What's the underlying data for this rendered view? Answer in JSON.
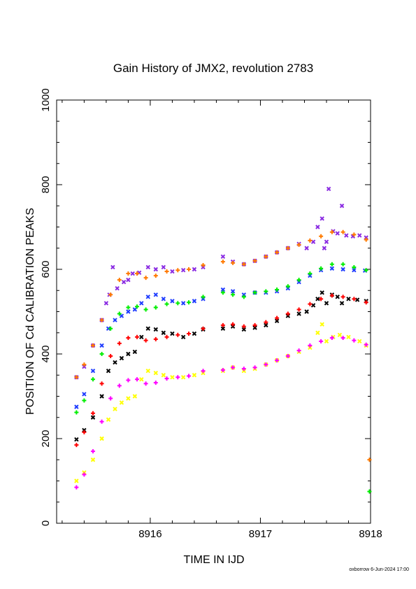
{
  "chart_data": {
    "type": "scatter",
    "title": "Gain History of JMX2, revolution 2783",
    "xlabel": "TIME IN IJD",
    "ylabel": "POSITION OF Cd CALIBRATION PEAKS",
    "xlim": [
      8915.15,
      8918.0
    ],
    "ylim": [
      0,
      1000
    ],
    "xticks": [
      8916,
      8917,
      8918
    ],
    "yticks": [
      0,
      200,
      400,
      600,
      800,
      1000
    ],
    "grid": false,
    "footer": "oxborrow  6-Jun-2024 17:00",
    "series": [
      {
        "color": "#8a2be2",
        "marker": "x",
        "points": [
          [
            8915.33,
            345
          ],
          [
            8915.4,
            370
          ],
          [
            8915.48,
            420
          ],
          [
            8915.56,
            480
          ],
          [
            8915.6,
            520
          ],
          [
            8915.63,
            540
          ],
          [
            8915.66,
            605
          ],
          [
            8915.7,
            555
          ],
          [
            8915.76,
            570
          ],
          [
            8915.8,
            575
          ],
          [
            8915.84,
            590
          ],
          [
            8915.9,
            592
          ],
          [
            8915.98,
            605
          ],
          [
            8916.05,
            600
          ],
          [
            8916.12,
            605
          ],
          [
            8916.2,
            595
          ],
          [
            8916.3,
            598
          ],
          [
            8916.4,
            600
          ],
          [
            8916.48,
            605
          ],
          [
            8916.66,
            630
          ],
          [
            8916.75,
            618
          ],
          [
            8916.85,
            612
          ],
          [
            8916.95,
            620
          ],
          [
            8917.05,
            630
          ],
          [
            8917.15,
            640
          ],
          [
            8917.25,
            650
          ],
          [
            8917.35,
            660
          ],
          [
            8917.42,
            650
          ],
          [
            8917.48,
            665
          ],
          [
            8917.52,
            700
          ],
          [
            8917.56,
            720
          ],
          [
            8917.58,
            650
          ],
          [
            8917.6,
            665
          ],
          [
            8917.62,
            790
          ],
          [
            8917.66,
            690
          ],
          [
            8917.7,
            685
          ],
          [
            8917.74,
            750
          ],
          [
            8917.78,
            680
          ],
          [
            8917.84,
            678
          ],
          [
            8917.9,
            680
          ],
          [
            8917.96,
            675
          ]
        ]
      },
      {
        "color": "#1e3cff",
        "marker": "x",
        "points": [
          [
            8915.33,
            275
          ],
          [
            8915.4,
            305
          ],
          [
            8915.48,
            360
          ],
          [
            8915.56,
            420
          ],
          [
            8915.62,
            460
          ],
          [
            8915.68,
            480
          ],
          [
            8915.74,
            490
          ],
          [
            8915.8,
            500
          ],
          [
            8915.86,
            505
          ],
          [
            8915.92,
            520
          ],
          [
            8915.98,
            535
          ],
          [
            8916.05,
            540
          ],
          [
            8916.12,
            530
          ],
          [
            8916.2,
            525
          ],
          [
            8916.3,
            520
          ],
          [
            8916.4,
            525
          ],
          [
            8916.48,
            530
          ],
          [
            8916.66,
            552
          ],
          [
            8916.75,
            548
          ],
          [
            8916.85,
            540
          ],
          [
            8916.95,
            545
          ],
          [
            8917.05,
            545
          ],
          [
            8917.15,
            548
          ],
          [
            8917.25,
            555
          ],
          [
            8917.35,
            570
          ],
          [
            8917.45,
            585
          ],
          [
            8917.55,
            598
          ],
          [
            8917.65,
            602
          ],
          [
            8917.75,
            600
          ],
          [
            8917.85,
            598
          ],
          [
            8917.95,
            597
          ]
        ]
      },
      {
        "color": "#000000",
        "marker": "x",
        "points": [
          [
            8915.33,
            198
          ],
          [
            8915.4,
            220
          ],
          [
            8915.48,
            250
          ],
          [
            8915.56,
            300
          ],
          [
            8915.62,
            360
          ],
          [
            8915.68,
            380
          ],
          [
            8915.74,
            390
          ],
          [
            8915.8,
            400
          ],
          [
            8915.86,
            405
          ],
          [
            8915.92,
            440
          ],
          [
            8915.98,
            460
          ],
          [
            8916.05,
            458
          ],
          [
            8916.12,
            450
          ],
          [
            8916.2,
            448
          ],
          [
            8916.3,
            440
          ],
          [
            8916.4,
            448
          ],
          [
            8916.48,
            458
          ],
          [
            8916.66,
            460
          ],
          [
            8916.75,
            465
          ],
          [
            8916.85,
            458
          ],
          [
            8916.95,
            462
          ],
          [
            8917.05,
            468
          ],
          [
            8917.15,
            478
          ],
          [
            8917.25,
            490
          ],
          [
            8917.35,
            495
          ],
          [
            8917.42,
            500
          ],
          [
            8917.48,
            515
          ],
          [
            8917.52,
            530
          ],
          [
            8917.56,
            545
          ],
          [
            8917.6,
            520
          ],
          [
            8917.65,
            540
          ],
          [
            8917.7,
            535
          ],
          [
            8917.74,
            520
          ],
          [
            8917.8,
            530
          ],
          [
            8917.88,
            528
          ],
          [
            8917.96,
            525
          ]
        ]
      },
      {
        "color": "#ffff00",
        "marker": "x",
        "points": [
          [
            8915.33,
            100
          ],
          [
            8915.4,
            120
          ],
          [
            8915.48,
            150
          ],
          [
            8915.56,
            200
          ],
          [
            8915.62,
            245
          ],
          [
            8915.68,
            270
          ],
          [
            8915.74,
            285
          ],
          [
            8915.8,
            295
          ],
          [
            8915.86,
            300
          ],
          [
            8915.92,
            340
          ],
          [
            8915.98,
            360
          ],
          [
            8916.05,
            355
          ],
          [
            8916.12,
            350
          ],
          [
            8916.2,
            345
          ],
          [
            8916.3,
            345
          ],
          [
            8916.4,
            350
          ],
          [
            8916.48,
            355
          ],
          [
            8916.66,
            360
          ],
          [
            8916.75,
            368
          ],
          [
            8916.85,
            360
          ],
          [
            8916.95,
            365
          ],
          [
            8917.05,
            375
          ],
          [
            8917.15,
            385
          ],
          [
            8917.25,
            395
          ],
          [
            8917.35,
            405
          ],
          [
            8917.45,
            415
          ],
          [
            8917.52,
            450
          ],
          [
            8917.56,
            470
          ],
          [
            8917.6,
            430
          ],
          [
            8917.66,
            440
          ],
          [
            8917.72,
            445
          ],
          [
            8917.8,
            440
          ],
          [
            8917.9,
            430
          ],
          [
            8917.96,
            420
          ]
        ]
      },
      {
        "color": "#ff7a00",
        "marker": "+",
        "points": [
          [
            8915.33,
            345
          ],
          [
            8915.4,
            375
          ],
          [
            8915.48,
            420
          ],
          [
            8915.56,
            480
          ],
          [
            8915.64,
            540
          ],
          [
            8915.72,
            575
          ],
          [
            8915.8,
            590
          ],
          [
            8915.88,
            590
          ],
          [
            8915.96,
            580
          ],
          [
            8916.05,
            585
          ],
          [
            8916.15,
            595
          ],
          [
            8916.25,
            598
          ],
          [
            8916.35,
            600
          ],
          [
            8916.48,
            610
          ],
          [
            8916.66,
            618
          ],
          [
            8916.75,
            615
          ],
          [
            8916.85,
            612
          ],
          [
            8916.95,
            620
          ],
          [
            8917.05,
            630
          ],
          [
            8917.15,
            640
          ],
          [
            8917.25,
            650
          ],
          [
            8917.35,
            658
          ],
          [
            8917.45,
            668
          ],
          [
            8917.55,
            678
          ],
          [
            8917.65,
            688
          ],
          [
            8917.75,
            688
          ],
          [
            8917.85,
            682
          ],
          [
            8917.96,
            670
          ],
          [
            8917.99,
            150
          ]
        ]
      },
      {
        "color": "#00ee00",
        "marker": "+",
        "points": [
          [
            8915.33,
            262
          ],
          [
            8915.4,
            290
          ],
          [
            8915.48,
            340
          ],
          [
            8915.56,
            400
          ],
          [
            8915.64,
            460
          ],
          [
            8915.72,
            495
          ],
          [
            8915.8,
            510
          ],
          [
            8915.88,
            512
          ],
          [
            8915.96,
            505
          ],
          [
            8916.05,
            510
          ],
          [
            8916.15,
            518
          ],
          [
            8916.25,
            520
          ],
          [
            8916.35,
            522
          ],
          [
            8916.48,
            535
          ],
          [
            8916.66,
            545
          ],
          [
            8916.75,
            540
          ],
          [
            8916.85,
            535
          ],
          [
            8916.95,
            545
          ],
          [
            8917.05,
            548
          ],
          [
            8917.15,
            552
          ],
          [
            8917.25,
            560
          ],
          [
            8917.35,
            575
          ],
          [
            8917.45,
            590
          ],
          [
            8917.55,
            602
          ],
          [
            8917.65,
            612
          ],
          [
            8917.75,
            612
          ],
          [
            8917.85,
            605
          ],
          [
            8917.96,
            598
          ],
          [
            8917.99,
            75
          ]
        ]
      },
      {
        "color": "#ff0000",
        "marker": "+",
        "points": [
          [
            8915.33,
            185
          ],
          [
            8915.4,
            215
          ],
          [
            8915.48,
            260
          ],
          [
            8915.56,
            330
          ],
          [
            8915.64,
            395
          ],
          [
            8915.72,
            425
          ],
          [
            8915.8,
            438
          ],
          [
            8915.88,
            440
          ],
          [
            8915.96,
            432
          ],
          [
            8916.05,
            435
          ],
          [
            8916.15,
            440
          ],
          [
            8916.25,
            445
          ],
          [
            8916.35,
            448
          ],
          [
            8916.48,
            460
          ],
          [
            8916.66,
            468
          ],
          [
            8916.75,
            470
          ],
          [
            8916.85,
            465
          ],
          [
            8916.95,
            468
          ],
          [
            8917.05,
            475
          ],
          [
            8917.15,
            485
          ],
          [
            8917.25,
            495
          ],
          [
            8917.35,
            505
          ],
          [
            8917.45,
            518
          ],
          [
            8917.55,
            530
          ],
          [
            8917.65,
            538
          ],
          [
            8917.75,
            535
          ],
          [
            8917.85,
            530
          ],
          [
            8917.96,
            522
          ]
        ]
      },
      {
        "color": "#ff00ff",
        "marker": "+",
        "points": [
          [
            8915.33,
            85
          ],
          [
            8915.4,
            115
          ],
          [
            8915.48,
            170
          ],
          [
            8915.56,
            240
          ],
          [
            8915.64,
            295
          ],
          [
            8915.72,
            325
          ],
          [
            8915.8,
            338
          ],
          [
            8915.88,
            340
          ],
          [
            8915.96,
            330
          ],
          [
            8916.05,
            332
          ],
          [
            8916.15,
            342
          ],
          [
            8916.25,
            345
          ],
          [
            8916.35,
            348
          ],
          [
            8916.48,
            360
          ],
          [
            8916.66,
            362
          ],
          [
            8916.75,
            368
          ],
          [
            8916.85,
            365
          ],
          [
            8916.95,
            368
          ],
          [
            8917.05,
            375
          ],
          [
            8917.15,
            385
          ],
          [
            8917.25,
            395
          ],
          [
            8917.35,
            408
          ],
          [
            8917.45,
            420
          ],
          [
            8917.55,
            430
          ],
          [
            8917.65,
            438
          ],
          [
            8917.75,
            438
          ],
          [
            8917.85,
            432
          ],
          [
            8917.96,
            422
          ]
        ]
      }
    ]
  }
}
